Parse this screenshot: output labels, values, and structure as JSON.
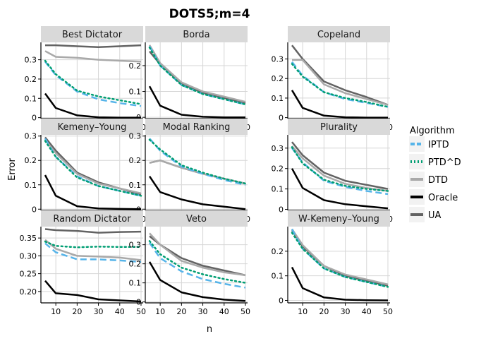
{
  "chart_data": {
    "type": "line",
    "title": "DOTS5;m=4",
    "xlabel": "n",
    "ylabel": "Error",
    "x": [
      5,
      10,
      20,
      30,
      40,
      50
    ],
    "xlim": [
      3,
      51
    ],
    "xticks": [
      10,
      20,
      30,
      40,
      50
    ],
    "legend_title": "Algorithm",
    "legend_position": "right",
    "series_styles": [
      {
        "name": "IPTD",
        "color": "#56b4e9",
        "dash": "dashed"
      },
      {
        "name": "PTD^D",
        "color": "#009e73",
        "dash": "dotted"
      },
      {
        "name": "DTD",
        "color": "#a9a9a9",
        "dash": "solid"
      },
      {
        "name": "Oracle",
        "color": "#000000",
        "dash": "solid"
      },
      {
        "name": "UA",
        "color": "#636363",
        "dash": "solid"
      }
    ],
    "panels": [
      {
        "title": "Best Dictator",
        "ylim": [
          -0.005,
          0.39
        ],
        "yticks": [
          0,
          0.1,
          0.2,
          0.3
        ],
        "ytick_labels": [
          "0",
          "0.1",
          "0.2",
          "0.3"
        ],
        "series": {
          "IPTD": [
            0.29,
            0.22,
            0.135,
            0.095,
            0.075,
            0.06
          ],
          "PTD^D": [
            0.295,
            0.225,
            0.14,
            0.11,
            0.09,
            0.07
          ],
          "DTD": [
            0.345,
            0.315,
            0.31,
            0.3,
            0.295,
            0.29
          ],
          "Oracle": [
            0.125,
            0.05,
            0.012,
            0.002,
            0.0,
            0.0
          ],
          "UA": [
            0.375,
            0.375,
            0.37,
            0.365,
            0.37,
            0.375
          ]
        }
      },
      {
        "title": "Borda",
        "ylim": [
          -0.005,
          0.29
        ],
        "yticks": [
          0,
          0.1,
          0.2
        ],
        "ytick_labels": [
          "0",
          "0.1",
          "0.2"
        ],
        "series": {
          "IPTD": [
            0.275,
            0.2,
            0.125,
            0.09,
            0.07,
            0.05
          ],
          "PTD^D": [
            0.27,
            0.2,
            0.125,
            0.09,
            0.07,
            0.05
          ],
          "DTD": [
            0.28,
            0.21,
            0.135,
            0.1,
            0.08,
            0.06
          ],
          "Oracle": [
            0.12,
            0.045,
            0.01,
            0.002,
            0.0,
            0.0
          ],
          "UA": [
            0.255,
            0.205,
            0.13,
            0.095,
            0.075,
            0.055
          ]
        }
      },
      {
        "title": "Copeland",
        "ylim": [
          -0.005,
          0.385
        ],
        "yticks": [
          0,
          0.1,
          0.2,
          0.3
        ],
        "ytick_labels": [
          "0",
          "0.1",
          "0.2",
          "0.3"
        ],
        "series": {
          "IPTD": [
            0.285,
            0.215,
            0.13,
            0.095,
            0.075,
            0.055
          ],
          "PTD^D": [
            0.275,
            0.21,
            0.13,
            0.1,
            0.08,
            0.055
          ],
          "DTD": [
            0.295,
            0.295,
            0.17,
            0.125,
            0.095,
            0.065
          ],
          "Oracle": [
            0.14,
            0.05,
            0.01,
            0.002,
            0.0,
            0.0
          ],
          "UA": [
            0.37,
            0.3,
            0.185,
            0.14,
            0.105,
            0.065
          ]
        }
      },
      {
        "title": "Kemeny–Young",
        "ylim": [
          -0.005,
          0.305
        ],
        "yticks": [
          0,
          0.1,
          0.2,
          0.3
        ],
        "ytick_labels": [
          "0",
          "0.1",
          "0.2",
          "0.3"
        ],
        "series": {
          "IPTD": [
            0.29,
            0.215,
            0.135,
            0.095,
            0.075,
            0.055
          ],
          "PTD^D": [
            0.28,
            0.215,
            0.13,
            0.095,
            0.075,
            0.055
          ],
          "DTD": [
            0.285,
            0.23,
            0.145,
            0.105,
            0.085,
            0.065
          ],
          "Oracle": [
            0.14,
            0.055,
            0.012,
            0.003,
            0.001,
            0.0
          ],
          "UA": [
            0.295,
            0.24,
            0.15,
            0.11,
            0.085,
            0.06
          ]
        }
      },
      {
        "title": "Modal Ranking",
        "ylim": [
          -0.005,
          0.305
        ],
        "yticks": [
          0,
          0.1,
          0.2,
          0.3
        ],
        "ytick_labels": [
          "0",
          "0.1",
          "0.2",
          "0.3"
        ],
        "series": {
          "IPTD": [
            0.29,
            0.24,
            0.175,
            0.145,
            0.12,
            0.1
          ],
          "PTD^D": [
            0.285,
            0.245,
            0.18,
            0.15,
            0.125,
            0.105
          ],
          "DTD": [
            0.19,
            0.2,
            0.17,
            0.145,
            0.125,
            0.105
          ],
          "Oracle": [
            0.135,
            0.07,
            0.04,
            0.02,
            0.01,
            0.0
          ],
          "UA": [
            0.19,
            0.2,
            0.17,
            0.145,
            0.125,
            0.105
          ]
        }
      },
      {
        "title": "Plurality",
        "ylim": [
          -0.005,
          0.365
        ],
        "yticks": [
          0,
          0.1,
          0.2,
          0.3
        ],
        "ytick_labels": [
          "0",
          "0.1",
          "0.2",
          "0.3"
        ],
        "series": {
          "IPTD": [
            0.3,
            0.23,
            0.14,
            0.11,
            0.09,
            0.075
          ],
          "PTD^D": [
            0.305,
            0.225,
            0.145,
            0.115,
            0.1,
            0.09
          ],
          "DTD": [
            0.31,
            0.25,
            0.165,
            0.125,
            0.105,
            0.09
          ],
          "Oracle": [
            0.2,
            0.105,
            0.045,
            0.025,
            0.015,
            0.005
          ],
          "UA": [
            0.33,
            0.265,
            0.18,
            0.14,
            0.12,
            0.1
          ]
        }
      },
      {
        "title": "Random Dictator",
        "ylim": [
          0.168,
          0.382
        ],
        "yticks": [
          0.2,
          0.25,
          0.3,
          0.35
        ],
        "ytick_labels": [
          "0.20",
          "0.25",
          "0.30",
          "0.35"
        ],
        "series": {
          "IPTD": [
            0.335,
            0.31,
            0.29,
            0.29,
            0.287,
            0.283
          ],
          "PTD^D": [
            0.34,
            0.328,
            0.324,
            0.326,
            0.325,
            0.325
          ],
          "DTD": [
            0.345,
            0.32,
            0.3,
            0.298,
            0.295,
            0.288
          ],
          "Oracle": [
            0.23,
            0.195,
            0.19,
            0.178,
            0.175,
            0.172
          ],
          "UA": [
            0.375,
            0.372,
            0.37,
            0.365,
            0.367,
            0.368
          ]
        }
      },
      {
        "title": "Veto",
        "ylim": [
          -0.005,
          0.395
        ],
        "yticks": [
          0,
          0.1,
          0.2,
          0.3
        ],
        "ytick_labels": [
          "0",
          "0.1",
          "0.2",
          "0.3"
        ],
        "series": {
          "IPTD": [
            0.31,
            0.23,
            0.16,
            0.12,
            0.095,
            0.075
          ],
          "PTD^D": [
            0.32,
            0.25,
            0.18,
            0.145,
            0.12,
            0.1
          ],
          "DTD": [
            0.36,
            0.3,
            0.215,
            0.18,
            0.155,
            0.14
          ],
          "Oracle": [
            0.21,
            0.115,
            0.05,
            0.025,
            0.012,
            0.005
          ],
          "UA": [
            0.345,
            0.3,
            0.23,
            0.19,
            0.165,
            0.14
          ]
        }
      },
      {
        "title": "W-Kemeny–Young",
        "ylim": [
          -0.01,
          0.3
        ],
        "yticks": [
          0,
          0.1,
          0.2
        ],
        "ytick_labels": [
          "0",
          "0.1",
          "0.2"
        ],
        "series": {
          "IPTD": [
            0.29,
            0.21,
            0.13,
            0.095,
            0.075,
            0.055
          ],
          "PTD^D": [
            0.275,
            0.21,
            0.13,
            0.095,
            0.075,
            0.055
          ],
          "DTD": [
            0.29,
            0.225,
            0.14,
            0.105,
            0.085,
            0.065
          ],
          "Oracle": [
            0.135,
            0.05,
            0.012,
            0.003,
            0.001,
            0.0
          ],
          "UA": [
            0.285,
            0.22,
            0.14,
            0.1,
            0.08,
            0.06
          ]
        }
      }
    ]
  }
}
